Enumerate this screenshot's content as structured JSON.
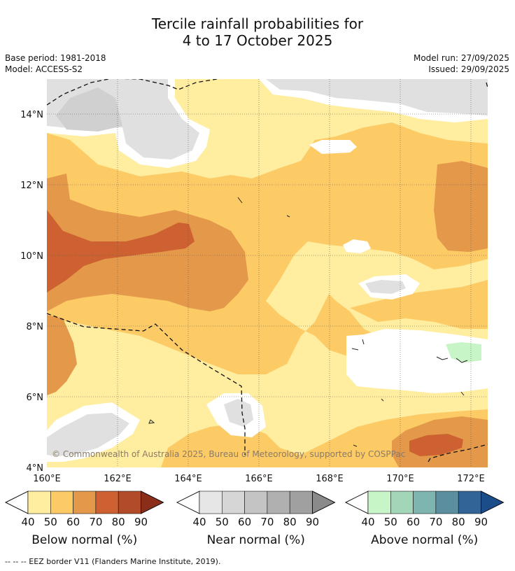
{
  "title": {
    "line1": "Tercile rainfall probabilities for",
    "line2": "4 to 17 October 2025"
  },
  "meta": {
    "base_period": "Base period: 1981-2018",
    "model": "Model: ACCESS-S2",
    "model_run": "Model run: 27/09/2025",
    "issued": "Issued: 29/09/2025"
  },
  "map": {
    "lat_labels": [
      "14°N",
      "12°N",
      "10°N",
      "8°N",
      "6°N",
      "4°N"
    ],
    "lon_labels": [
      "160°E",
      "162°E",
      "164°E",
      "166°E",
      "168°E",
      "170°E",
      "172°E"
    ],
    "copyright": "© Commonwealth of Australia 2025, Bureau of Meteorology, supported by COSPPac"
  },
  "legends": [
    {
      "label": "Below normal (%)",
      "ticks": [
        "40",
        "50",
        "60",
        "70",
        "80",
        "90"
      ],
      "colors": [
        "#ffeda0",
        "#fdcb66",
        "#e4984a",
        "#cd6131",
        "#b24b2a",
        "#8a2e1a"
      ]
    },
    {
      "label": "Near normal (%)",
      "ticks": [
        "40",
        "50",
        "60",
        "70",
        "80",
        "90"
      ],
      "colors": [
        "#e6e6e6",
        "#d6d6d6",
        "#c4c4c4",
        "#b0b0b0",
        "#a0a0a0",
        "#8a8a8a"
      ]
    },
    {
      "label": "Above normal (%)",
      "ticks": [
        "40",
        "50",
        "60",
        "70",
        "80",
        "90"
      ],
      "colors": [
        "#c8f5c8",
        "#a3d6b8",
        "#7fb5b0",
        "#5b8fa0",
        "#336497",
        "#1a4d8a"
      ]
    }
  ],
  "footnote": "--  --  -- EEZ border V11 (Flanders Marine Institute, 2019)."
}
